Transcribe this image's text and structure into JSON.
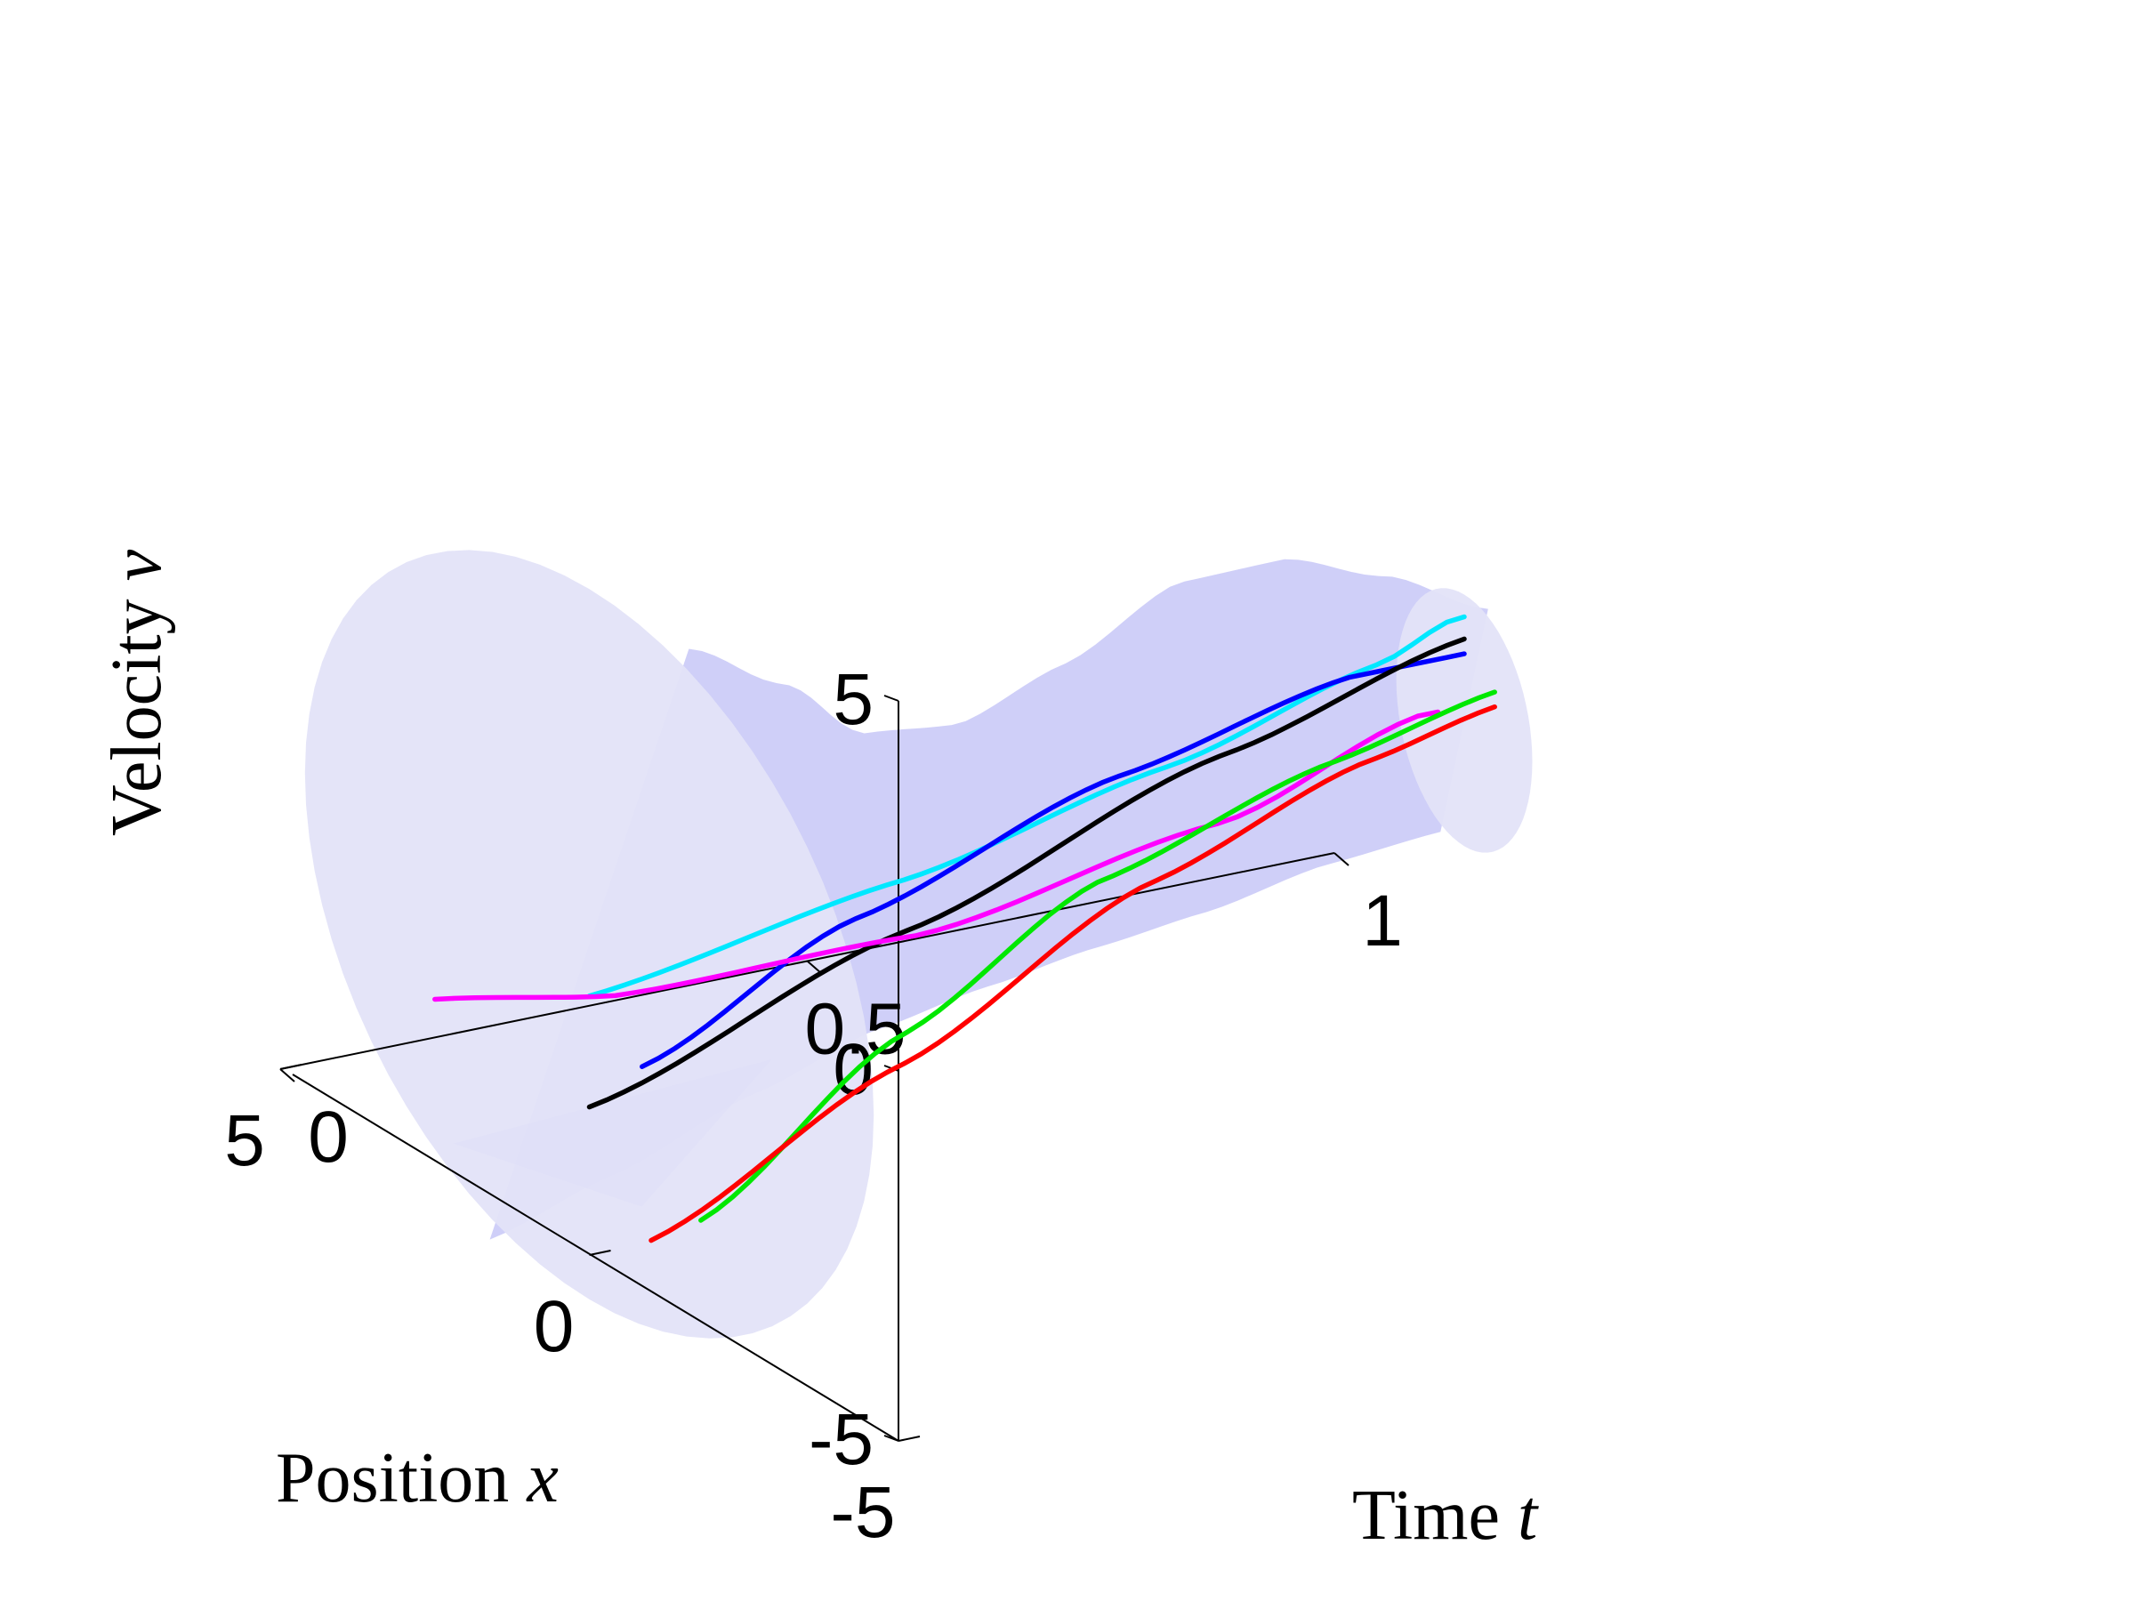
{
  "chart_data": {
    "type": "line",
    "subtype": "3d-trajectories-in-tube",
    "title": "",
    "axes": {
      "t": {
        "label_text": "Time ",
        "label_var": "t",
        "range": [
          0,
          1
        ],
        "ticks": [
          {
            "value": 0,
            "label": "0"
          },
          {
            "value": 0.5,
            "label": "0.5"
          },
          {
            "value": 1,
            "label": "1"
          }
        ]
      },
      "x": {
        "label_text": "Position ",
        "label_var": "x",
        "range": [
          -5,
          5
        ],
        "ticks": [
          {
            "value": -5,
            "label": "-5"
          },
          {
            "value": 0,
            "label": "0"
          },
          {
            "value": 5,
            "label": "5"
          }
        ]
      },
      "v": {
        "label_text": "Velocity ",
        "label_var": "v",
        "range": [
          -5,
          5
        ],
        "ticks": [
          {
            "value": -5,
            "label": "-5"
          },
          {
            "value": 0,
            "label": "0"
          },
          {
            "value": 5,
            "label": "5"
          }
        ]
      }
    },
    "grid": false,
    "legend": "none",
    "tube": {
      "color": "#ccccf8",
      "cap_color": "#e3e3f8",
      "fold_color": "#a7a7f2",
      "t_end": 0.83,
      "radius_x": [
        4.6,
        3.9,
        2.6,
        1.9,
        1.8,
        1.9,
        1.8,
        1.4,
        1.1
      ],
      "radius_v": [
        4.8,
        4.0,
        2.9,
        2.4,
        2.5,
        2.8,
        2.7,
        2.2,
        1.7
      ],
      "center_v": [
        -0.8,
        -0.9,
        -1.0,
        -0.8,
        -0.4,
        0.1,
        0.2,
        0.1,
        -0.2
      ]
    },
    "series": [
      {
        "color": "#00e8ff",
        "t": [
          0,
          0.83
        ],
        "x0": 0,
        "v": [
          -1.5,
          -0.8,
          0.0,
          0.8,
          1.2
        ],
        "vt": [
          0,
          0.3,
          0.55,
          0.75,
          0.82
        ]
      },
      {
        "color": "#0000ff",
        "t": [
          0.05,
          0.83
        ],
        "x0": 0,
        "v": [
          -2.6,
          -1.2,
          0.0,
          0.7,
          0.7
        ],
        "vt": [
          0.05,
          0.25,
          0.5,
          0.72,
          0.83
        ]
      },
      {
        "color": "#000000",
        "t": [
          0,
          0.83
        ],
        "x0": 0,
        "v": [
          -3.0,
          -1.5,
          0.0,
          0.9
        ],
        "vt": [
          0,
          0.3,
          0.6,
          0.83
        ]
      },
      {
        "color": "#ff00ff",
        "t": [
          0,
          0.83
        ],
        "x0": 2.5,
        "v": [
          -2.8,
          -3.0,
          -2.6,
          -1.5,
          -0.3
        ],
        "vt": [
          0,
          0.15,
          0.4,
          0.65,
          0.82
        ]
      },
      {
        "color": "#00e800",
        "t": [
          0.05,
          0.85
        ],
        "x0": -1,
        "v": [
          -4.2,
          -2.4,
          -1.0,
          -0.2,
          0.2
        ],
        "vt": [
          0.05,
          0.25,
          0.45,
          0.68,
          0.85
        ]
      },
      {
        "color": "#ff0000",
        "t": [
          0,
          0.85
        ],
        "x0": -1,
        "v": [
          -4.3,
          -2.8,
          -1.2,
          -0.3,
          0.0
        ],
        "vt": [
          0,
          0.25,
          0.5,
          0.72,
          0.85
        ]
      }
    ]
  }
}
